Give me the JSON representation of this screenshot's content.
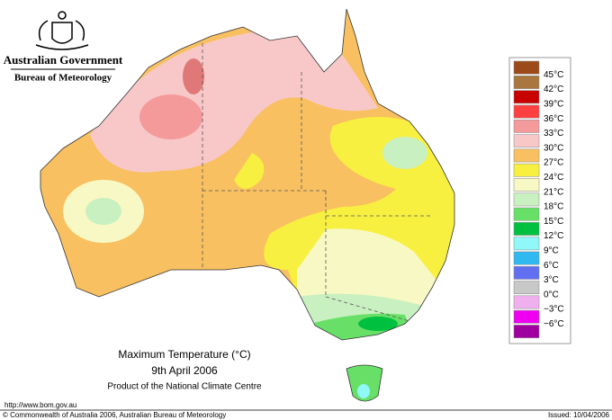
{
  "header": {
    "agency": "Australian Government",
    "bureau": "Bureau of Meteorology"
  },
  "map": {
    "title": "Maximum Temperature (°C)",
    "date": "9th April 2006",
    "product": "Product of the National Climate Centre"
  },
  "legend": {
    "labels": [
      "45°C",
      "42°C",
      "39°C",
      "36°C",
      "33°C",
      "30°C",
      "27°C",
      "24°C",
      "21°C",
      "18°C",
      "15°C",
      "12°C",
      "9°C",
      "6°C",
      "3°C",
      "0°C",
      "−3°C",
      "−6°C"
    ],
    "colors": [
      "#9c4a1a",
      "#a8763e",
      "#c80000",
      "#ff4040",
      "#f49a9a",
      "#f8c8c8",
      "#f8c060",
      "#f8f040",
      "#f8f8c4",
      "#c8f0c0",
      "#68e068",
      "#00c040",
      "#90f8f8",
      "#30b8f0",
      "#6070f0",
      "#c8c8c8",
      "#f0b0f0",
      "#f000f0",
      "#a000a0"
    ]
  },
  "footer": {
    "url": "http://www.bom.gov.au",
    "copyright": "© Commonwealth of Australia 2006, Australian Bureau of Meteorology",
    "issued": "Issued: 10/04/2006"
  }
}
